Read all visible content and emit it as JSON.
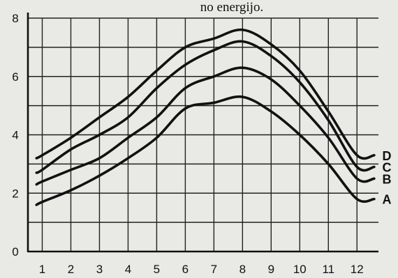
{
  "chart_data": {
    "type": "line",
    "title": "no energijo.",
    "xlabel": "",
    "ylabel": "",
    "x": [
      1,
      2,
      3,
      4,
      5,
      6,
      7,
      8,
      9,
      10,
      11,
      12
    ],
    "xlim": [
      0.5,
      12.75
    ],
    "ylim": [
      0,
      8
    ],
    "yticks": [
      0,
      2,
      4,
      6,
      8
    ],
    "grid": true,
    "series": [
      {
        "name": "A",
        "values": [
          1.7,
          2.1,
          2.6,
          3.2,
          3.9,
          4.9,
          5.1,
          5.3,
          4.8,
          4.0,
          3.0,
          1.8
        ]
      },
      {
        "name": "B",
        "values": [
          2.4,
          2.8,
          3.2,
          3.9,
          4.6,
          5.6,
          6.0,
          6.3,
          5.9,
          5.0,
          3.9,
          2.5
        ]
      },
      {
        "name": "C",
        "values": [
          2.8,
          3.5,
          4.0,
          4.6,
          5.6,
          6.4,
          6.9,
          7.2,
          6.7,
          5.8,
          4.5,
          2.9
        ]
      },
      {
        "name": "D",
        "values": [
          3.3,
          3.9,
          4.6,
          5.3,
          6.2,
          7.0,
          7.3,
          7.6,
          7.1,
          6.2,
          4.8,
          3.3
        ]
      }
    ]
  }
}
